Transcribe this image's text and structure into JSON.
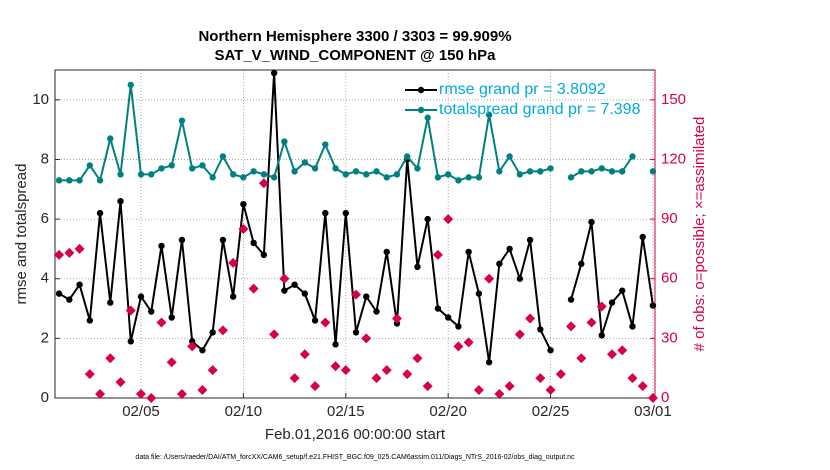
{
  "chart_data": {
    "type": "line",
    "title": [
      "Northern Hemisphere 3300 / 3303 = 99.909%",
      "SAT_V_WIND_COMPONENT @ 150 hPa"
    ],
    "xlabel": "Feb.01,2016 00:00:00 start",
    "ylabel": "rmse and totalspread",
    "y2label": "# of obs: o=possible; ×=assimilated",
    "footnote": "data file: /Users/raeder/DAI/ATM_forcXX/CAM6_setup/f.e21.FHIST_BGC.f09_025.CAM6assim.011/Diags_NTrS_2016-02/obs_diag_output.nc",
    "x": [
      0,
      0.5,
      1,
      1.5,
      2,
      2.5,
      3,
      3.5,
      4,
      4.5,
      5,
      5.5,
      6,
      6.5,
      7,
      7.5,
      8,
      8.5,
      9,
      9.5,
      10,
      10.5,
      11,
      11.5,
      12,
      12.5,
      13,
      13.5,
      14,
      14.5,
      15,
      15.5,
      16,
      16.5,
      17,
      17.5,
      18,
      18.5,
      19,
      19.5,
      20,
      20.5,
      21,
      21.5,
      22,
      22.5,
      23,
      23.5,
      24,
      24.5,
      25,
      25.5,
      26,
      26.5,
      27,
      27.5,
      28,
      28.5,
      29
    ],
    "xlim": [
      -0.2,
      29.1
    ],
    "xticks": [
      {
        "value": 4,
        "label": "02/05"
      },
      {
        "value": 9,
        "label": "02/10"
      },
      {
        "value": 14,
        "label": "02/15"
      },
      {
        "value": 19,
        "label": "02/20"
      },
      {
        "value": 24,
        "label": "02/25"
      },
      {
        "value": 29,
        "label": "03/01"
      }
    ],
    "ylim": [
      0,
      11
    ],
    "yticks": [
      0,
      2,
      4,
      6,
      8,
      10
    ],
    "y2lim": [
      0,
      165
    ],
    "y2ticks": [
      0,
      30,
      60,
      90,
      120,
      150
    ],
    "grid": true,
    "legend": "upper right",
    "series": [
      {
        "name": "rmse grand pr = 3.8092",
        "color": "#000000",
        "marker": "circle",
        "values": [
          3.5,
          3.3,
          3.8,
          2.6,
          6.2,
          3.2,
          6.6,
          1.9,
          3.4,
          2.9,
          5.1,
          2.7,
          5.3,
          1.9,
          1.6,
          2.2,
          5.3,
          3.4,
          6.5,
          5.2,
          4.8,
          10.9,
          3.6,
          3.8,
          3.5,
          2.6,
          6.2,
          1.8,
          6.2,
          2.2,
          3.4,
          2.9,
          4.9,
          2.5,
          8.0,
          4.4,
          6.0,
          3.0,
          2.7,
          2.4,
          4.9,
          3.5,
          1.2,
          4.5,
          5.0,
          4.0,
          5.3,
          2.3,
          1.6,
          null,
          3.3,
          4.5,
          5.9,
          2.1,
          3.2,
          3.6,
          2.4,
          5.4,
          3.1
        ]
      },
      {
        "name": "totalspread grand pr = 7.398",
        "color": "#008080",
        "marker": "circle",
        "values": [
          7.3,
          7.3,
          7.3,
          7.8,
          7.3,
          8.7,
          7.5,
          10.5,
          7.5,
          7.5,
          7.7,
          7.8,
          9.3,
          7.7,
          7.8,
          7.4,
          8.1,
          7.5,
          7.4,
          7.6,
          7.5,
          7.4,
          8.6,
          7.6,
          7.9,
          7.7,
          8.5,
          7.7,
          7.5,
          7.6,
          7.5,
          7.6,
          7.4,
          7.5,
          8.1,
          7.7,
          9.4,
          7.4,
          7.5,
          7.3,
          7.4,
          7.4,
          9.5,
          7.6,
          8.1,
          7.5,
          7.6,
          7.6,
          7.7,
          null,
          7.4,
          7.6,
          7.6,
          7.7,
          7.6,
          7.6,
          8.1,
          null,
          7.6
        ]
      },
      {
        "color": "#d6004f",
        "axis": "y2",
        "marker": "x",
        "values": [
          72,
          73,
          75,
          12,
          2,
          20,
          8,
          44,
          2,
          0,
          38,
          18,
          2,
          26,
          4,
          14,
          34,
          68,
          85,
          55,
          108,
          32,
          60,
          10,
          22,
          6,
          38,
          16,
          14,
          52,
          30,
          10,
          14,
          40,
          12,
          20,
          6,
          72,
          90,
          26,
          28,
          4,
          60,
          2,
          6,
          32,
          40,
          10,
          4,
          12,
          36,
          20,
          38,
          46,
          22,
          24,
          10,
          6,
          0
        ]
      }
    ]
  }
}
